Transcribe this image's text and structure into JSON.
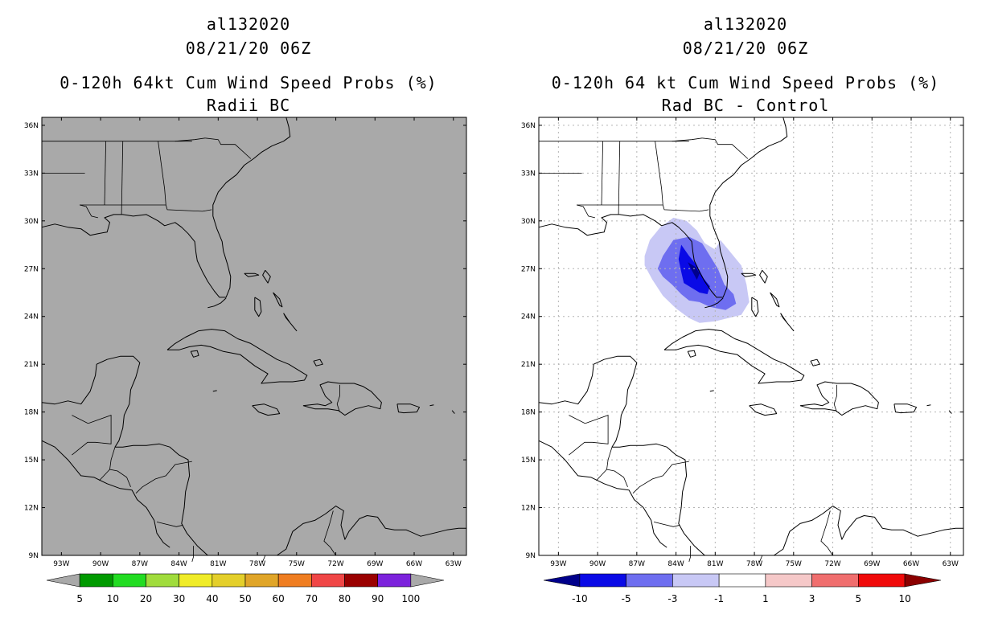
{
  "left": {
    "storm_id": "al132020",
    "datetime": "08/21/20 06Z",
    "product": "0-120h 64kt Cum Wind Speed Probs (%)",
    "subtitle": "Radii BC",
    "background": "#a9a9a9",
    "colorbar": {
      "colors": [
        "#009a00",
        "#22dc22",
        "#a0dc3c",
        "#f0ec28",
        "#e4cf2a",
        "#e0a528",
        "#ef7d21",
        "#f04646",
        "#9a0000",
        "#7c22dc"
      ],
      "labels": [
        "5",
        "10",
        "20",
        "30",
        "40",
        "50",
        "60",
        "70",
        "80",
        "90",
        "100"
      ]
    }
  },
  "right": {
    "storm_id": "al132020",
    "datetime": "08/21/20 06Z",
    "product": "0-120h 64 kt Cum Wind Speed Probs (%)",
    "subtitle": "Rad BC - Control",
    "background": "#ffffff",
    "colorbar": {
      "colors": [
        "#00008b",
        "#0a0ae6",
        "#6e6ef0",
        "#c8c8f5",
        "#ffffff",
        "#f5c8c8",
        "#f06e6e",
        "#f00a0a",
        "#8b0000"
      ],
      "labels": [
        "-10",
        "-5",
        "-3",
        "-1",
        "1",
        "3",
        "5",
        "10"
      ]
    },
    "shading_levels": [
      {
        "name": "diff-minus-1",
        "color": "#c8c8f5"
      },
      {
        "name": "diff-minus-3",
        "color": "#6e6ef0"
      },
      {
        "name": "diff-minus-5",
        "color": "#0a0ae6"
      },
      {
        "name": "diff-minus-10",
        "color": "#00008b"
      }
    ]
  },
  "map": {
    "lon_range": [
      -94.5,
      -62
    ],
    "lat_range": [
      9,
      36.5
    ],
    "lon_ticks": [
      "93W",
      "90W",
      "87W",
      "84W",
      "81W",
      "78W",
      "75W",
      "72W",
      "69W",
      "66W",
      "63W"
    ],
    "lat_ticks": [
      "9N",
      "12N",
      "15N",
      "18N",
      "21N",
      "24N",
      "27N",
      "30N",
      "33N",
      "36N"
    ],
    "lon_values": [
      -93,
      -90,
      -87,
      -84,
      -81,
      -78,
      -75,
      -72,
      -69,
      -66,
      -63
    ],
    "lat_values": [
      9,
      12,
      15,
      18,
      21,
      24,
      27,
      30,
      33,
      36
    ]
  }
}
